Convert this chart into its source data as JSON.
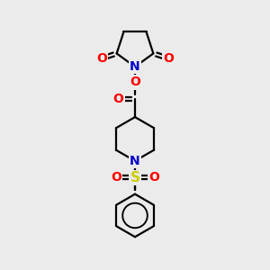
{
  "bg_color": "#ebebeb",
  "bond_color": "#000000",
  "N_color": "#0000cc",
  "O_color": "#ff0000",
  "S_color": "#cccc00",
  "line_width": 1.6,
  "font_size": 10,
  "fig_size": [
    3.0,
    3.0
  ],
  "dpi": 100,
  "xlim": [
    0,
    10
  ],
  "ylim": [
    0,
    10
  ]
}
